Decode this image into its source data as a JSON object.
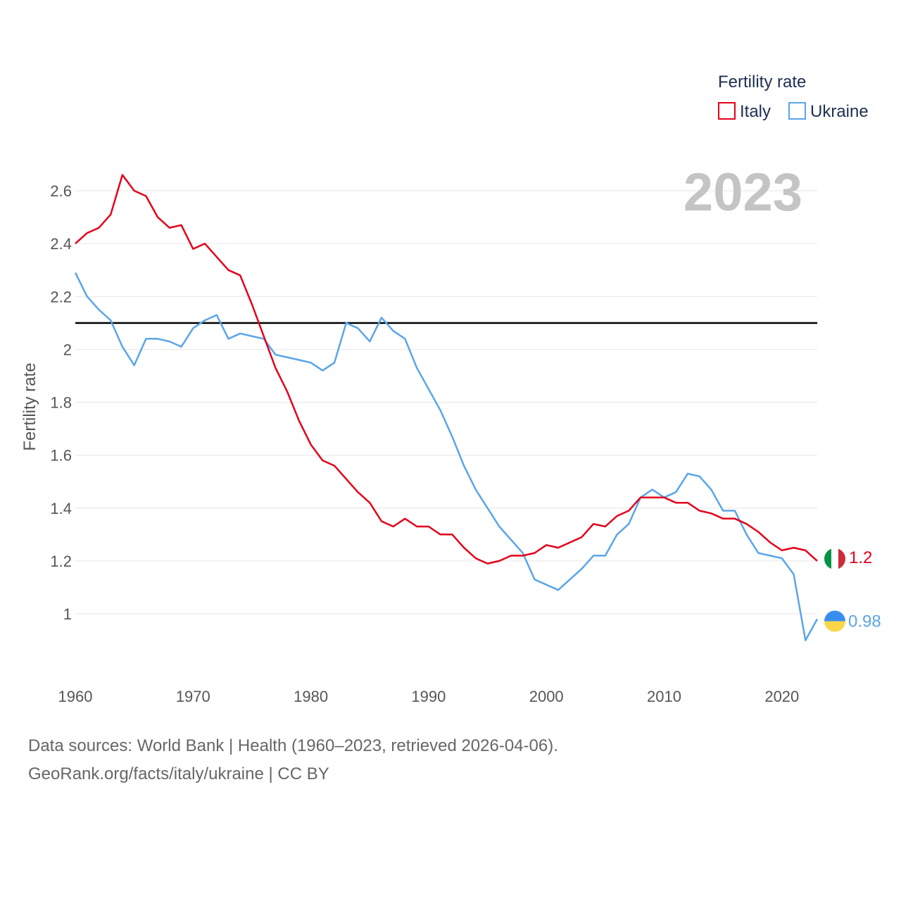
{
  "chart_data": {
    "type": "line",
    "title": "",
    "year_label": "2023",
    "ylabel": "Fertility rate",
    "xlabel": "",
    "xlim": [
      1960,
      2023
    ],
    "ylim": [
      0.8,
      2.75
    ],
    "x_ticks": [
      1960,
      1970,
      1980,
      1990,
      2000,
      2010,
      2020
    ],
    "y_ticks": [
      1,
      1.2,
      1.4,
      1.6,
      1.8,
      2,
      2.2,
      2.4,
      2.6
    ],
    "y_tick_labels": [
      "1",
      "1.2",
      "1.4",
      "1.6",
      "1.8",
      "2",
      "2.2",
      "2.4",
      "2.6"
    ],
    "x_tick_labels": [
      "1960",
      "1970",
      "1980",
      "1990",
      "2000",
      "2010",
      "2020"
    ],
    "reference_line": 2.1,
    "legend": {
      "title": "Fertility rate",
      "position": "top-right"
    },
    "x": [
      1960,
      1961,
      1962,
      1963,
      1964,
      1965,
      1966,
      1967,
      1968,
      1969,
      1970,
      1971,
      1972,
      1973,
      1974,
      1975,
      1976,
      1977,
      1978,
      1979,
      1980,
      1981,
      1982,
      1983,
      1984,
      1985,
      1986,
      1987,
      1988,
      1989,
      1990,
      1991,
      1992,
      1993,
      1994,
      1995,
      1996,
      1997,
      1998,
      1999,
      2000,
      2001,
      2002,
      2003,
      2004,
      2005,
      2006,
      2007,
      2008,
      2009,
      2010,
      2011,
      2012,
      2013,
      2014,
      2015,
      2016,
      2017,
      2018,
      2019,
      2020,
      2021,
      2022,
      2023
    ],
    "series": [
      {
        "name": "Italy",
        "color": "#e3001b",
        "end_label": "1.2",
        "values": [
          2.4,
          2.44,
          2.46,
          2.51,
          2.66,
          2.6,
          2.58,
          2.5,
          2.46,
          2.47,
          2.38,
          2.4,
          2.35,
          2.3,
          2.28,
          2.17,
          2.05,
          1.93,
          1.84,
          1.73,
          1.64,
          1.58,
          1.56,
          1.51,
          1.46,
          1.42,
          1.35,
          1.33,
          1.36,
          1.33,
          1.33,
          1.3,
          1.3,
          1.25,
          1.21,
          1.19,
          1.2,
          1.22,
          1.22,
          1.23,
          1.26,
          1.25,
          1.27,
          1.29,
          1.34,
          1.33,
          1.37,
          1.39,
          1.44,
          1.44,
          1.44,
          1.42,
          1.42,
          1.39,
          1.38,
          1.36,
          1.36,
          1.34,
          1.31,
          1.27,
          1.24,
          1.25,
          1.24,
          1.2
        ]
      },
      {
        "name": "Ukraine",
        "color": "#5aa5e8",
        "end_label": "0.98",
        "values": [
          2.29,
          2.2,
          2.15,
          2.11,
          2.01,
          1.94,
          2.04,
          2.04,
          2.03,
          2.01,
          2.08,
          2.11,
          2.13,
          2.04,
          2.06,
          2.05,
          2.04,
          1.98,
          1.97,
          1.96,
          1.95,
          1.92,
          1.95,
          2.1,
          2.08,
          2.03,
          2.12,
          2.07,
          2.04,
          1.93,
          1.85,
          1.77,
          1.67,
          1.56,
          1.47,
          1.4,
          1.33,
          1.28,
          1.23,
          1.13,
          1.11,
          1.09,
          1.13,
          1.17,
          1.22,
          1.22,
          1.3,
          1.34,
          1.44,
          1.47,
          1.44,
          1.46,
          1.53,
          1.52,
          1.47,
          1.39,
          1.39,
          1.3,
          1.23,
          1.22,
          1.21,
          1.15,
          0.9,
          0.98
        ]
      }
    ]
  },
  "source": {
    "line1": "Data sources: World Bank | Health (1960–2023, retrieved 2026-04-06).",
    "line2": "GeoRank.org/facts/italy/ukraine | CC BY"
  }
}
